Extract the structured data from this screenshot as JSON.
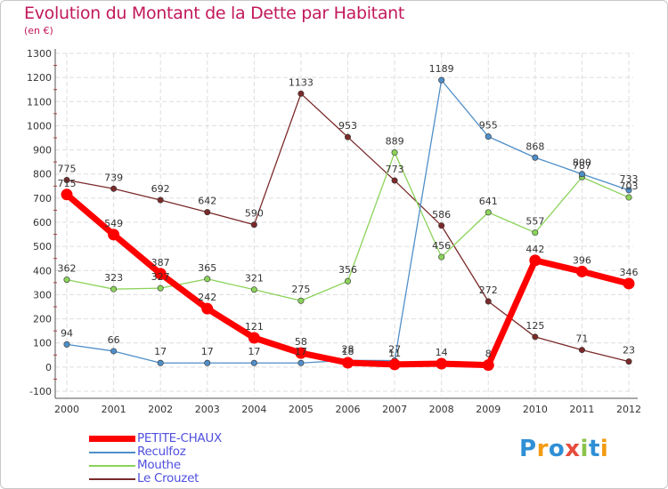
{
  "title": "Evolution du Montant de la Dette par Habitant",
  "subtitle": "(en €)",
  "logo": {
    "text": "Proxiti",
    "letters": [
      {
        "ch": "P",
        "color": "#2f8fd6"
      },
      {
        "ch": "r",
        "color": "#f39c12"
      },
      {
        "ch": "o",
        "color": "#2f8fd6"
      },
      {
        "ch": "x",
        "color": "#e74c3c"
      },
      {
        "ch": "i",
        "color": "#8bc34a"
      },
      {
        "ch": "t",
        "color": "#2f8fd6"
      },
      {
        "ch": "i",
        "color": "#f39c12"
      }
    ]
  },
  "chart_data": {
    "type": "line",
    "x": [
      "2000",
      "2001",
      "2002",
      "2003",
      "2004",
      "2005",
      "2006",
      "2007",
      "2008",
      "2009",
      "2010",
      "2011",
      "2012"
    ],
    "ylim": [
      -100,
      1300
    ],
    "yticks": [
      -100,
      0,
      100,
      200,
      300,
      400,
      500,
      600,
      700,
      800,
      900,
      1000,
      1100,
      1200,
      1300
    ],
    "grid": true,
    "legend_position": "bottom-left",
    "series": [
      {
        "name": "PETITE-CHAUX",
        "color": "#ff0000",
        "values": [
          715,
          549,
          387,
          242,
          121,
          58,
          18,
          11,
          14,
          8,
          442,
          396,
          346
        ],
        "labels": [
          "715",
          "549",
          "387",
          "242",
          "121",
          "58",
          "18",
          "11",
          "14",
          "8",
          "442",
          "396",
          "346"
        ]
      },
      {
        "name": "Reculfoz",
        "color": "#4f8fc8",
        "values": [
          94,
          66,
          17,
          17,
          17,
          17,
          28,
          27,
          1189,
          955,
          868,
          800,
          733
        ],
        "labels": [
          "94",
          "66",
          "17",
          "17",
          "17",
          "17",
          "28",
          "27",
          "1189",
          "955",
          "868",
          "800",
          "733"
        ]
      },
      {
        "name": "Mouthe",
        "color": "#8bd35a",
        "values": [
          362,
          323,
          327,
          365,
          321,
          275,
          356,
          889,
          456,
          641,
          557,
          787,
          703
        ],
        "labels": [
          "362",
          "323",
          "327",
          "365",
          "321",
          "275",
          "356",
          "889",
          "456",
          "641",
          "557",
          "787",
          "703"
        ]
      },
      {
        "name": "Le Crouzet",
        "color": "#7b2a2a",
        "values": [
          775,
          739,
          692,
          642,
          590,
          1133,
          953,
          773,
          586,
          272,
          125,
          71,
          23
        ],
        "labels": [
          "775",
          "739",
          "692",
          "642",
          "590",
          "1133",
          "953",
          "773",
          "586",
          "272",
          "125",
          "71",
          "23"
        ]
      }
    ]
  }
}
